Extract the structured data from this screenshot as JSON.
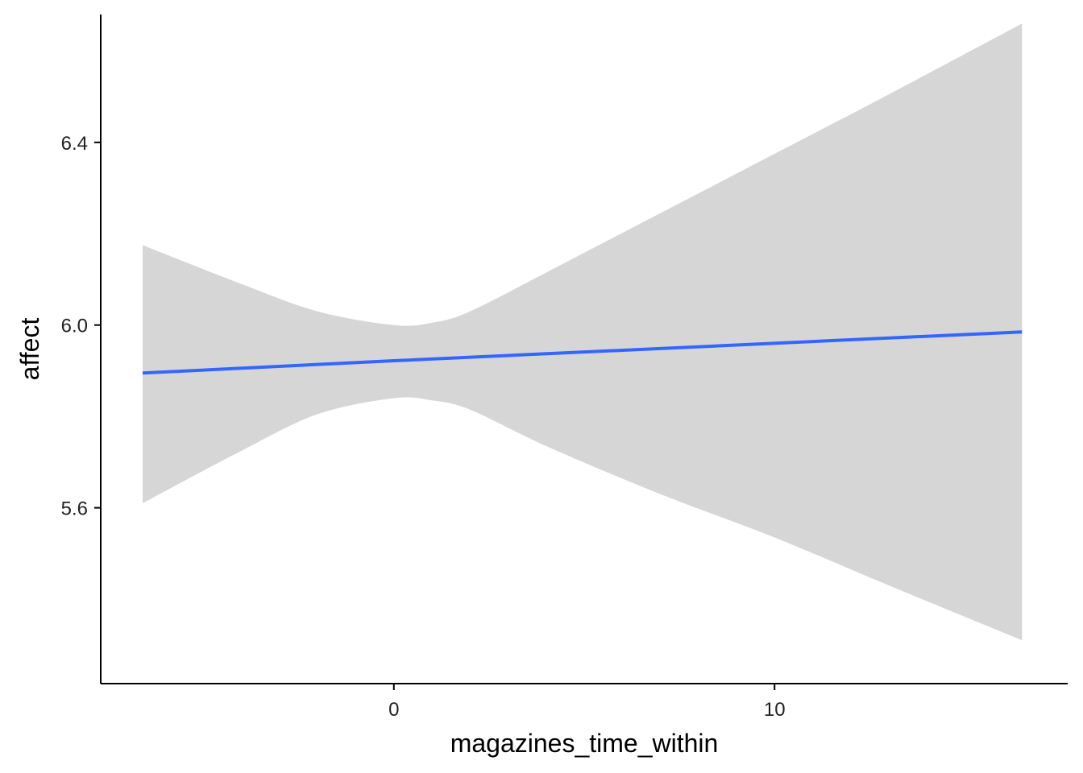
{
  "chart_data": {
    "type": "line",
    "title": "",
    "xlabel": "magazines_time_within",
    "ylabel": "affect",
    "xlim": [
      -7.7,
      17.7
    ],
    "ylim": [
      5.215,
      6.68
    ],
    "x_ticks": [
      0,
      10
    ],
    "x_tick_labels": [
      "0",
      "10"
    ],
    "y_ticks": [
      5.6,
      6.0,
      6.4
    ],
    "y_tick_labels": [
      "5.6",
      "6.0",
      "6.4"
    ],
    "grid": false,
    "legend": "none",
    "colors": {
      "line": "#3366FF",
      "band": "#D6D6D6",
      "axis": "#000000"
    },
    "series": [
      {
        "x": [
          -6.6,
          0,
          16.5
        ],
        "y": [
          5.895,
          5.922,
          5.985
        ]
      }
    ],
    "confidence_band": {
      "x": [
        -6.6,
        -4,
        -2,
        0,
        1,
        2,
        4,
        7,
        10,
        13,
        16.5
      ],
      "upper": [
        6.175,
        6.09,
        6.03,
        6.0,
        6.005,
        6.03,
        6.115,
        6.245,
        6.375,
        6.505,
        6.66
      ],
      "lower": [
        5.61,
        5.725,
        5.805,
        5.84,
        5.835,
        5.815,
        5.735,
        5.63,
        5.535,
        5.43,
        5.31
      ]
    }
  }
}
